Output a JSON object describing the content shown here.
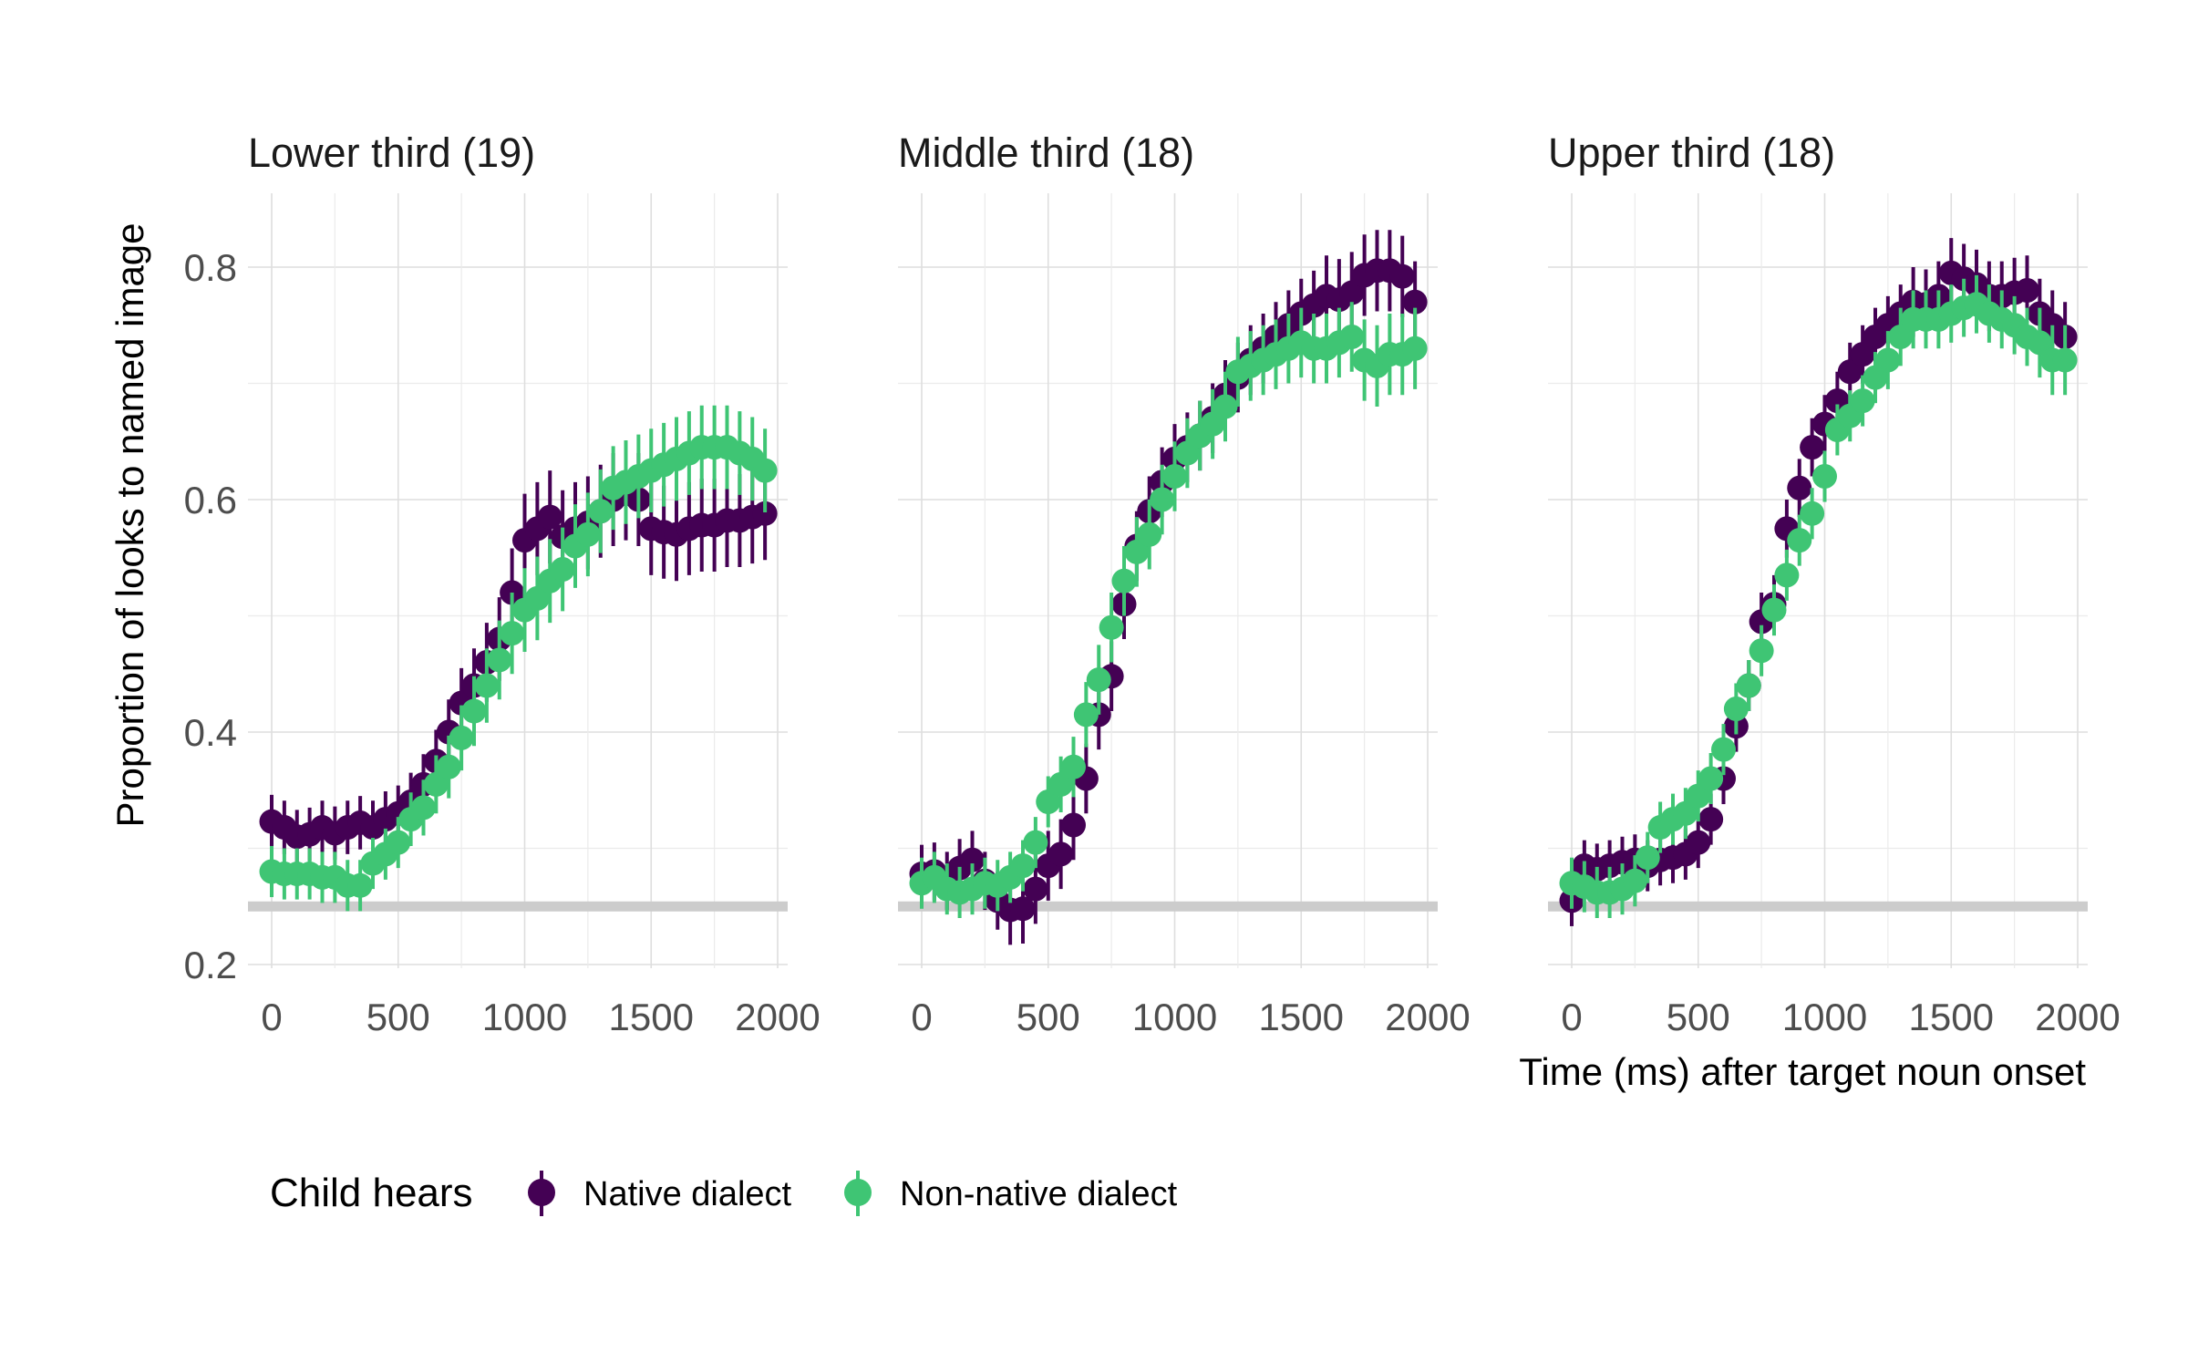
{
  "chart_data": {
    "type": "scatter",
    "title": "",
    "xlabel": "Time (ms) after target noun onset",
    "ylabel": "Proportion of looks to named image",
    "xlim": [
      -100,
      2050
    ],
    "ylim": [
      0.18,
      0.86
    ],
    "x_ticks": [
      "0",
      "500",
      "1000",
      "1500",
      "2000"
    ],
    "y_ticks": [
      "0.2",
      "0.4",
      "0.6",
      "0.8"
    ],
    "grid": true,
    "reference_line": 0.25,
    "legend": {
      "title": "Child hears",
      "placement": "bottom-left",
      "entries": [
        "Native dialect",
        "Non-native dialect"
      ]
    },
    "colors": {
      "native": "#440154",
      "nonnative": "#3fc574",
      "reference": "#cccccc"
    },
    "x": [
      0,
      50,
      100,
      150,
      200,
      250,
      300,
      350,
      400,
      450,
      500,
      550,
      600,
      650,
      700,
      750,
      800,
      850,
      900,
      950,
      1000,
      1050,
      1100,
      1150,
      1200,
      1250,
      1300,
      1350,
      1400,
      1450,
      1500,
      1550,
      1600,
      1650,
      1700,
      1750,
      1800,
      1850,
      1900,
      1950
    ],
    "panels": [
      {
        "title": "Lower third (19)",
        "series": [
          {
            "name": "Native dialect",
            "values": [
              0.323,
              0.318,
              0.31,
              0.312,
              0.318,
              0.313,
              0.318,
              0.322,
              0.318,
              0.325,
              0.33,
              0.34,
              0.355,
              0.375,
              0.4,
              0.425,
              0.44,
              0.46,
              0.48,
              0.52,
              0.565,
              0.575,
              0.585,
              0.568,
              0.575,
              0.58,
              0.59,
              0.6,
              0.605,
              0.6,
              0.575,
              0.572,
              0.57,
              0.575,
              0.578,
              0.578,
              0.582,
              0.582,
              0.585,
              0.588
            ],
            "err": [
              0.023,
              0.023,
              0.023,
              0.023,
              0.023,
              0.023,
              0.023,
              0.023,
              0.023,
              0.024,
              0.024,
              0.025,
              0.026,
              0.027,
              0.028,
              0.03,
              0.032,
              0.034,
              0.036,
              0.038,
              0.04,
              0.04,
              0.04,
              0.04,
              0.04,
              0.04,
              0.04,
              0.04,
              0.04,
              0.04,
              0.04,
              0.04,
              0.04,
              0.04,
              0.04,
              0.04,
              0.04,
              0.04,
              0.04,
              0.04
            ]
          },
          {
            "name": "Non-native dialect",
            "values": [
              0.28,
              0.278,
              0.278,
              0.278,
              0.275,
              0.275,
              0.268,
              0.268,
              0.287,
              0.295,
              0.305,
              0.325,
              0.335,
              0.355,
              0.37,
              0.395,
              0.418,
              0.44,
              0.462,
              0.485,
              0.505,
              0.515,
              0.53,
              0.54,
              0.56,
              0.57,
              0.59,
              0.61,
              0.615,
              0.62,
              0.625,
              0.63,
              0.635,
              0.64,
              0.645,
              0.645,
              0.645,
              0.64,
              0.635,
              0.625
            ],
            "err": [
              0.022,
              0.022,
              0.022,
              0.022,
              0.022,
              0.022,
              0.022,
              0.022,
              0.022,
              0.022,
              0.022,
              0.023,
              0.024,
              0.025,
              0.027,
              0.028,
              0.03,
              0.032,
              0.034,
              0.035,
              0.036,
              0.036,
              0.036,
              0.036,
              0.036,
              0.036,
              0.036,
              0.036,
              0.036,
              0.036,
              0.036,
              0.036,
              0.036,
              0.036,
              0.036,
              0.036,
              0.036,
              0.036,
              0.036,
              0.036
            ]
          }
        ]
      },
      {
        "title": "Middle third (18)",
        "series": [
          {
            "name": "Native dialect",
            "values": [
              0.278,
              0.28,
              0.272,
              0.283,
              0.29,
              0.272,
              0.255,
              0.247,
              0.248,
              0.265,
              0.285,
              0.295,
              0.32,
              0.36,
              0.415,
              0.448,
              0.51,
              0.56,
              0.59,
              0.615,
              0.635,
              0.645,
              0.655,
              0.67,
              0.69,
              0.705,
              0.72,
              0.73,
              0.74,
              0.75,
              0.76,
              0.767,
              0.775,
              0.772,
              0.778,
              0.793,
              0.797,
              0.797,
              0.792,
              0.77
            ],
            "err": [
              0.025,
              0.025,
              0.025,
              0.025,
              0.025,
              0.025,
              0.025,
              0.03,
              0.03,
              0.03,
              0.03,
              0.03,
              0.03,
              0.03,
              0.03,
              0.03,
              0.03,
              0.03,
              0.03,
              0.03,
              0.03,
              0.03,
              0.03,
              0.03,
              0.03,
              0.03,
              0.03,
              0.03,
              0.03,
              0.03,
              0.03,
              0.03,
              0.035,
              0.035,
              0.035,
              0.035,
              0.035,
              0.035,
              0.035,
              0.035
            ]
          },
          {
            "name": "Non-native dialect",
            "values": [
              0.27,
              0.275,
              0.265,
              0.262,
              0.265,
              0.27,
              0.268,
              0.275,
              0.285,
              0.305,
              0.34,
              0.355,
              0.37,
              0.415,
              0.445,
              0.49,
              0.53,
              0.555,
              0.57,
              0.6,
              0.62,
              0.64,
              0.655,
              0.665,
              0.68,
              0.71,
              0.715,
              0.72,
              0.725,
              0.73,
              0.735,
              0.73,
              0.73,
              0.735,
              0.74,
              0.72,
              0.715,
              0.725,
              0.725,
              0.73
            ],
            "err": [
              0.022,
              0.022,
              0.022,
              0.022,
              0.022,
              0.022,
              0.022,
              0.022,
              0.022,
              0.022,
              0.022,
              0.024,
              0.026,
              0.028,
              0.03,
              0.03,
              0.03,
              0.03,
              0.03,
              0.03,
              0.03,
              0.03,
              0.03,
              0.03,
              0.03,
              0.03,
              0.03,
              0.03,
              0.03,
              0.03,
              0.03,
              0.03,
              0.03,
              0.03,
              0.03,
              0.035,
              0.035,
              0.035,
              0.035,
              0.035
            ]
          }
        ]
      },
      {
        "title": "Upper third (18)",
        "series": [
          {
            "name": "Native dialect",
            "values": [
              0.255,
              0.285,
              0.282,
              0.285,
              0.288,
              0.29,
              0.285,
              0.29,
              0.292,
              0.295,
              0.305,
              0.325,
              0.36,
              0.405,
              0.44,
              0.495,
              0.51,
              0.575,
              0.61,
              0.645,
              0.665,
              0.685,
              0.71,
              0.725,
              0.74,
              0.75,
              0.76,
              0.77,
              0.768,
              0.775,
              0.795,
              0.79,
              0.785,
              0.775,
              0.775,
              0.778,
              0.78,
              0.76,
              0.75,
              0.74
            ],
            "err": [
              0.022,
              0.022,
              0.022,
              0.022,
              0.022,
              0.022,
              0.022,
              0.022,
              0.022,
              0.022,
              0.022,
              0.022,
              0.022,
              0.022,
              0.022,
              0.025,
              0.025,
              0.025,
              0.025,
              0.025,
              0.025,
              0.025,
              0.025,
              0.025,
              0.025,
              0.025,
              0.025,
              0.03,
              0.03,
              0.03,
              0.03,
              0.03,
              0.03,
              0.03,
              0.03,
              0.03,
              0.03,
              0.03,
              0.03,
              0.03
            ]
          },
          {
            "name": "Non-native dialect",
            "values": [
              0.27,
              0.267,
              0.262,
              0.262,
              0.265,
              0.272,
              0.292,
              0.318,
              0.325,
              0.33,
              0.345,
              0.36,
              0.385,
              0.42,
              0.44,
              0.47,
              0.505,
              0.535,
              0.565,
              0.588,
              0.62,
              0.66,
              0.672,
              0.685,
              0.705,
              0.72,
              0.74,
              0.755,
              0.755,
              0.755,
              0.76,
              0.765,
              0.768,
              0.76,
              0.755,
              0.75,
              0.74,
              0.735,
              0.72,
              0.72
            ],
            "err": [
              0.022,
              0.022,
              0.022,
              0.022,
              0.022,
              0.022,
              0.022,
              0.022,
              0.022,
              0.022,
              0.022,
              0.022,
              0.022,
              0.022,
              0.022,
              0.022,
              0.022,
              0.022,
              0.022,
              0.022,
              0.022,
              0.022,
              0.022,
              0.022,
              0.022,
              0.025,
              0.025,
              0.025,
              0.025,
              0.025,
              0.025,
              0.025,
              0.025,
              0.025,
              0.025,
              0.025,
              0.025,
              0.03,
              0.03,
              0.03
            ]
          }
        ]
      }
    ]
  }
}
